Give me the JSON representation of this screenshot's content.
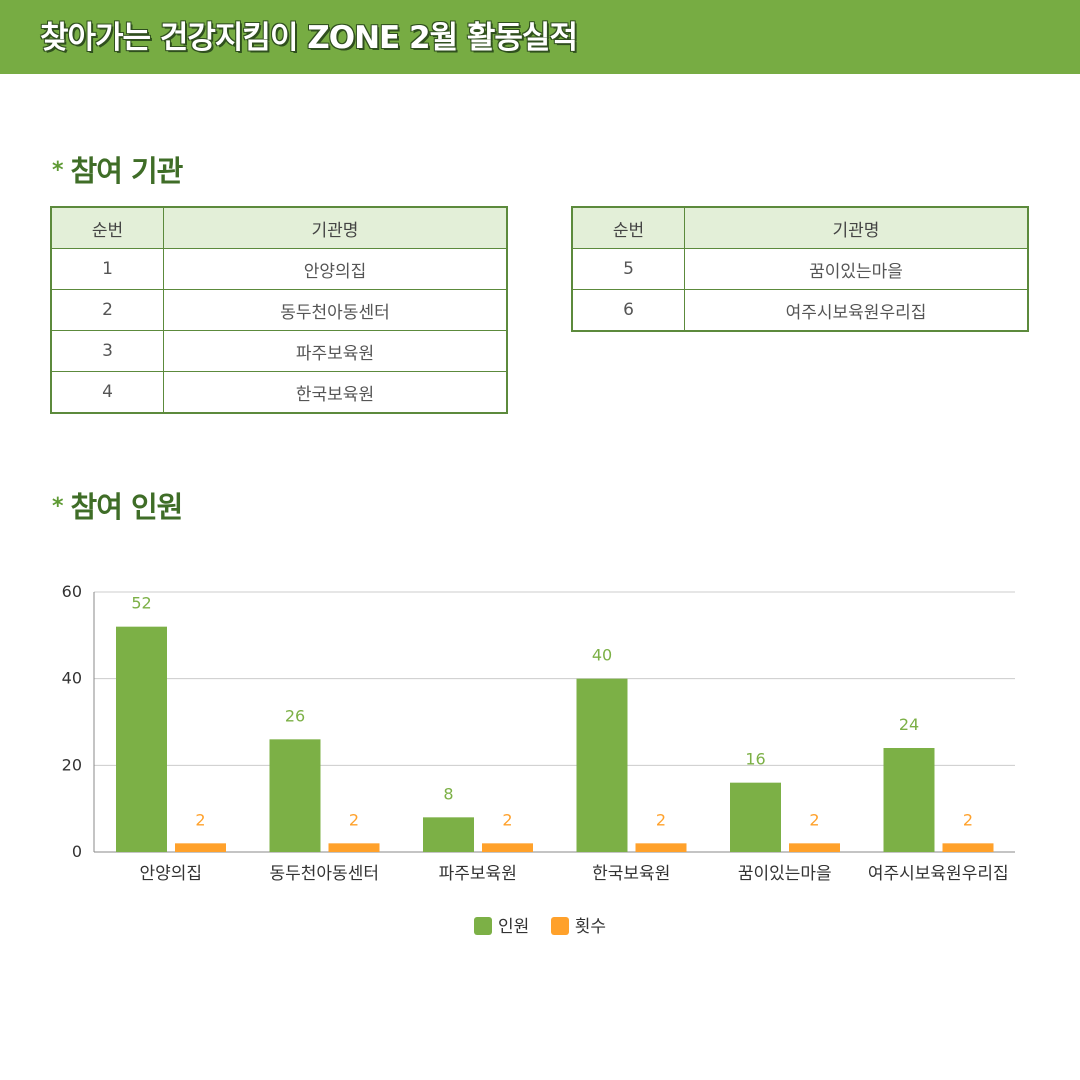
{
  "header": {
    "title": "찾아가는 건강지킴이 ZONE 2월 활동실적"
  },
  "sections": {
    "institutions_title": "참여 기관",
    "participants_title": "참여 인원",
    "bullet": "*"
  },
  "institutions": {
    "headers": {
      "number": "순번",
      "name": "기관명"
    },
    "left": [
      {
        "number": "1",
        "name": "안양의집"
      },
      {
        "number": "2",
        "name": "동두천아동센터"
      },
      {
        "number": "3",
        "name": "파주보육원"
      },
      {
        "number": "4",
        "name": "한국보육원"
      }
    ],
    "right": [
      {
        "number": "5",
        "name": "꿈이있는마을"
      },
      {
        "number": "6",
        "name": "여주시보육원우리집"
      }
    ]
  },
  "colors": {
    "green": "#7cb046",
    "orange": "#ffa12b",
    "dark_green": "#3f6d27"
  },
  "chart_data": {
    "type": "bar",
    "title": "",
    "xlabel": "",
    "ylabel": "",
    "categories": [
      "안양의집",
      "동두천아동센터",
      "파주보육원",
      "한국보육원",
      "꿈이있는마을",
      "여주시보육원우리집"
    ],
    "series": [
      {
        "name": "인원",
        "values": [
          52,
          26,
          8,
          40,
          16,
          24
        ],
        "color": "#7cb046"
      },
      {
        "name": "횟수",
        "values": [
          2,
          2,
          2,
          2,
          2,
          2
        ],
        "color": "#ffa12b"
      }
    ],
    "ylim": [
      0,
      60
    ],
    "yticks": [
      0,
      20,
      40,
      60
    ],
    "grid": true,
    "legend": "bottom-center",
    "data_labels": true
  }
}
